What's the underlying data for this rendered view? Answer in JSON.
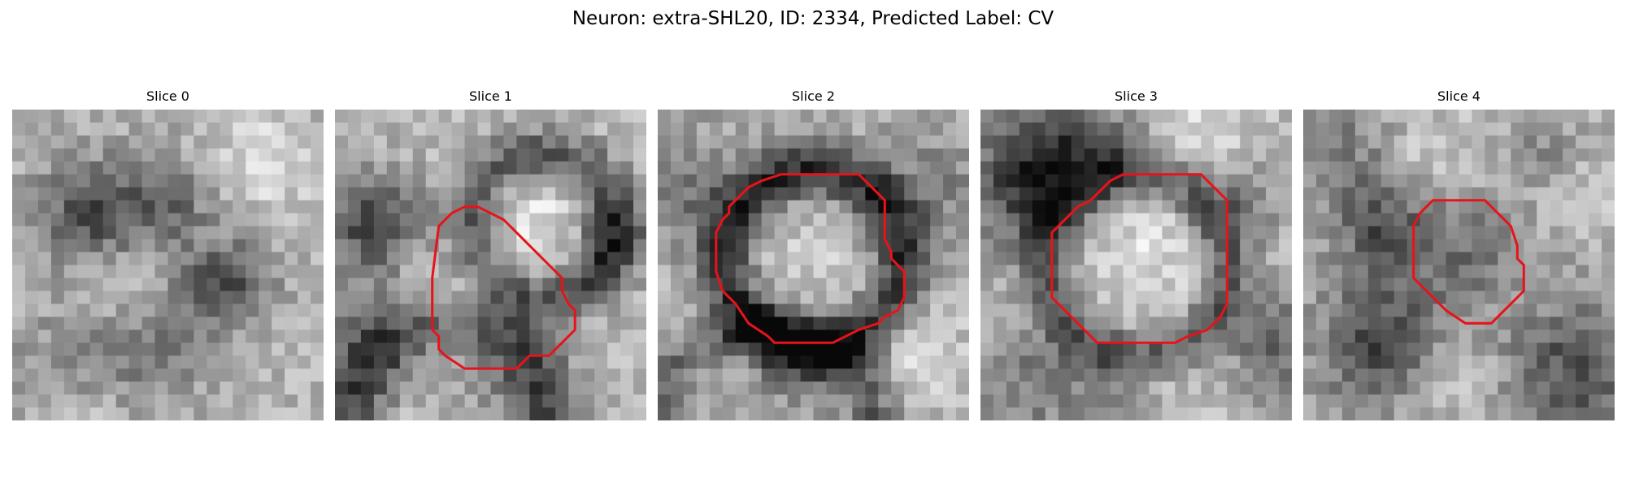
{
  "figure": {
    "title": "Neuron: extra-SHL20, ID: 2334, Predicted Label: CV"
  },
  "colors": {
    "background": "#ffffff",
    "contour": "#e8131a",
    "text": "#000000"
  },
  "slices": [
    {
      "title": "Slice 0",
      "grid_size": 24,
      "seed": 11,
      "base_gray": 178,
      "dark_blobs": [
        [
          6,
          8,
          2.8,
          105
        ],
        [
          12,
          7,
          2.6,
          70
        ],
        [
          17,
          13,
          2.4,
          75
        ],
        [
          14,
          15,
          2.6,
          45
        ],
        [
          10,
          20,
          3.2,
          50
        ],
        [
          4,
          20,
          3.0,
          40
        ]
      ],
      "dark_rings": [],
      "light_blobs": [
        [
          19,
          4,
          2.8,
          45
        ],
        [
          9,
          13,
          2.4,
          25
        ],
        [
          7,
          23,
          3.0,
          30
        ]
      ],
      "contour": []
    },
    {
      "title": "Slice 1",
      "grid_size": 24,
      "seed": 23,
      "base_gray": 182,
      "dark_blobs": [
        [
          3,
          9,
          2.8,
          115
        ],
        [
          2,
          18,
          3.0,
          55
        ],
        [
          12,
          22,
          4.0,
          60
        ],
        [
          21,
          10,
          2.4,
          60
        ]
      ],
      "dark_rings": [
        [
          16,
          9,
          5.5,
          1.5,
          110
        ],
        [
          9,
          24,
          7.5,
          1.8,
          100
        ]
      ],
      "light_blobs": [
        [
          16,
          9,
          4.2,
          45
        ],
        [
          9,
          15,
          3.4,
          45
        ],
        [
          10,
          24,
          5.0,
          35
        ]
      ],
      "contour": [
        [
          8,
          9
        ],
        [
          8.5,
          8.5
        ],
        [
          9,
          8
        ],
        [
          10,
          7.5
        ],
        [
          11,
          7.5
        ],
        [
          12,
          8
        ],
        [
          13,
          8.5
        ],
        [
          14,
          9.5
        ],
        [
          15,
          10.5
        ],
        [
          16,
          11.5
        ],
        [
          17.5,
          13
        ],
        [
          17.5,
          14
        ],
        [
          18,
          15
        ],
        [
          18.5,
          15.5
        ],
        [
          18.5,
          17
        ],
        [
          17.5,
          18
        ],
        [
          16.5,
          19
        ],
        [
          15,
          19
        ],
        [
          14.5,
          19.5
        ],
        [
          14,
          20
        ],
        [
          10,
          20
        ],
        [
          8.5,
          19
        ],
        [
          8,
          18.5
        ],
        [
          8,
          17.5
        ],
        [
          7.5,
          17
        ],
        [
          7.5,
          13
        ]
      ]
    },
    {
      "title": "Slice 2",
      "grid_size": 24,
      "seed": 37,
      "base_gray": 172,
      "dark_blobs": [
        [
          2,
          6,
          3.0,
          55
        ],
        [
          21,
          6,
          2.8,
          45
        ],
        [
          10,
          20,
          2.4,
          40
        ]
      ],
      "dark_rings": [
        [
          12,
          11.5,
          6.8,
          1.5,
          135
        ],
        [
          8,
          26,
          9.0,
          1.5,
          85
        ]
      ],
      "light_blobs": [
        [
          12,
          11.5,
          4.5,
          25
        ],
        [
          20,
          19,
          3.0,
          45
        ],
        [
          4,
          18,
          3.0,
          30
        ]
      ],
      "contour": [
        [
          7,
          6
        ],
        [
          8,
          5.5
        ],
        [
          9.5,
          5
        ],
        [
          15.5,
          5
        ],
        [
          16.5,
          6
        ],
        [
          17.5,
          7
        ],
        [
          17.5,
          9
        ],
        [
          17.5,
          10
        ],
        [
          18,
          11
        ],
        [
          18,
          11.5
        ],
        [
          19,
          12.5
        ],
        [
          19,
          14.5
        ],
        [
          18.5,
          15.5
        ],
        [
          17.5,
          16
        ],
        [
          17,
          16.5
        ],
        [
          15.5,
          17
        ],
        [
          14.5,
          17.5
        ],
        [
          13.5,
          18
        ],
        [
          9,
          18
        ],
        [
          8.5,
          17.5
        ],
        [
          7,
          16.5
        ],
        [
          6,
          15
        ],
        [
          5,
          14
        ],
        [
          4.5,
          12.5
        ],
        [
          4.5,
          9.5
        ],
        [
          5,
          8.5
        ],
        [
          5.5,
          8
        ],
        [
          5.5,
          7.5
        ],
        [
          6.5,
          6.5
        ]
      ]
    },
    {
      "title": "Slice 3",
      "grid_size": 24,
      "seed": 53,
      "base_gray": 186,
      "dark_blobs": [
        [
          3,
          6,
          3.6,
          110
        ],
        [
          6,
          3,
          2.8,
          85
        ],
        [
          11,
          3,
          2.5,
          55
        ],
        [
          20,
          7,
          2.4,
          60
        ],
        [
          23,
          18,
          3.0,
          85
        ],
        [
          3,
          21,
          3.5,
          55
        ],
        [
          12,
          23,
          4.5,
          45
        ]
      ],
      "dark_rings": [
        [
          12,
          12,
          7.0,
          1.4,
          95
        ]
      ],
      "light_blobs": [
        [
          12,
          11.5,
          4.5,
          35
        ],
        [
          16,
          2,
          3.0,
          40
        ],
        [
          15,
          21,
          3.0,
          40
        ]
      ],
      "contour": [
        [
          7.5,
          7.5
        ],
        [
          8.5,
          7
        ],
        [
          9,
          6.5
        ],
        [
          9.5,
          6
        ],
        [
          10,
          5.5
        ],
        [
          11,
          5
        ],
        [
          17,
          5
        ],
        [
          18,
          6
        ],
        [
          19,
          7
        ],
        [
          19,
          15
        ],
        [
          18.5,
          16
        ],
        [
          17.5,
          17
        ],
        [
          16,
          17.5
        ],
        [
          15,
          18
        ],
        [
          9,
          18
        ],
        [
          8,
          17
        ],
        [
          7,
          16
        ],
        [
          6,
          15
        ],
        [
          5.5,
          14.5
        ],
        [
          5.5,
          9.5
        ],
        [
          6,
          9
        ]
      ]
    },
    {
      "title": "Slice 4",
      "grid_size": 24,
      "seed": 71,
      "base_gray": 168,
      "dark_blobs": [
        [
          6,
          18,
          3.2,
          100
        ],
        [
          6,
          9,
          2.4,
          80
        ],
        [
          12,
          11,
          3.2,
          55
        ],
        [
          3,
          3,
          3.0,
          45
        ],
        [
          21,
          20,
          3.5,
          90
        ],
        [
          19,
          4,
          2.2,
          45
        ]
      ],
      "dark_rings": [],
      "light_blobs": [
        [
          21,
          6,
          2.8,
          40
        ],
        [
          10,
          3,
          3.0,
          35
        ],
        [
          11,
          21,
          3.0,
          30
        ]
      ],
      "contour": [
        [
          9,
          8
        ],
        [
          10,
          7
        ],
        [
          14,
          7
        ],
        [
          15,
          8
        ],
        [
          16,
          9
        ],
        [
          16.5,
          10.5
        ],
        [
          16.5,
          11.5
        ],
        [
          17,
          12
        ],
        [
          17,
          14
        ],
        [
          16.5,
          14.5
        ],
        [
          15,
          16
        ],
        [
          14.5,
          16.5
        ],
        [
          12.5,
          16.5
        ],
        [
          11,
          15.5
        ],
        [
          10,
          14.5
        ],
        [
          8.5,
          13
        ],
        [
          8.5,
          9
        ]
      ]
    }
  ]
}
